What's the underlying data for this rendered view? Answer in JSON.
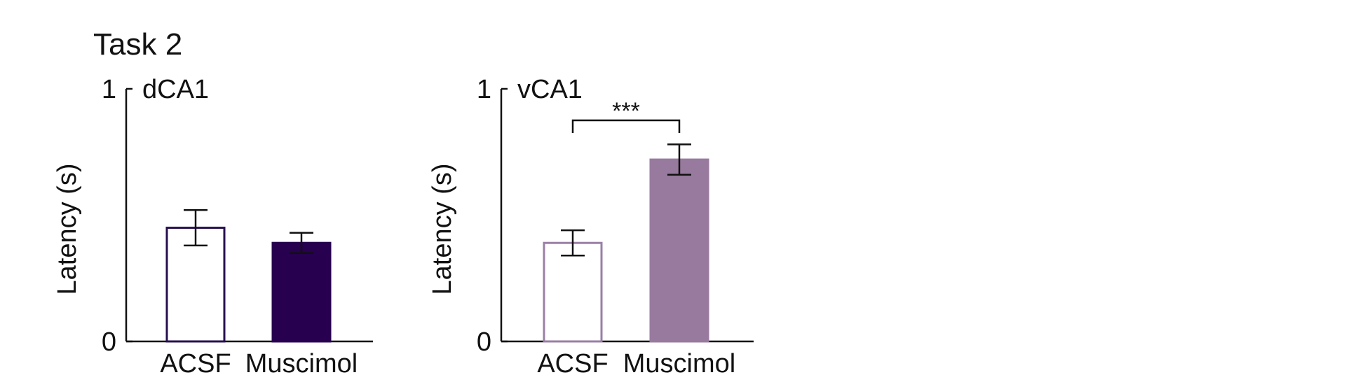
{
  "figure_title": "Task 2",
  "chart_data": [
    {
      "type": "bar",
      "title": "dCA1",
      "ylabel": "Latency (s)",
      "xlabel": "",
      "ylim": [
        0,
        1
      ],
      "yticks": [
        0,
        1
      ],
      "categories": [
        "ACSF",
        "Muscimol"
      ],
      "values": [
        0.45,
        0.39
      ],
      "errors": [
        0.07,
        0.04
      ],
      "bar_styles": [
        {
          "fill": "#ffffff",
          "stroke": "#27104f"
        },
        {
          "fill": "#27004f",
          "stroke": "#27004f"
        }
      ],
      "significance": null
    },
    {
      "type": "bar",
      "title": "vCA1",
      "ylabel": "Latency (s)",
      "xlabel": "",
      "ylim": [
        0,
        1
      ],
      "yticks": [
        0,
        1
      ],
      "categories": [
        "ACSF",
        "Muscimol"
      ],
      "values": [
        0.39,
        0.72
      ],
      "errors": [
        0.05,
        0.06
      ],
      "bar_styles": [
        {
          "fill": "#ffffff",
          "stroke": "#9a7fa6"
        },
        {
          "fill": "#987a9e",
          "stroke": "#987a9e"
        }
      ],
      "significance": {
        "label": "***",
        "between": [
          0,
          1
        ]
      }
    }
  ]
}
